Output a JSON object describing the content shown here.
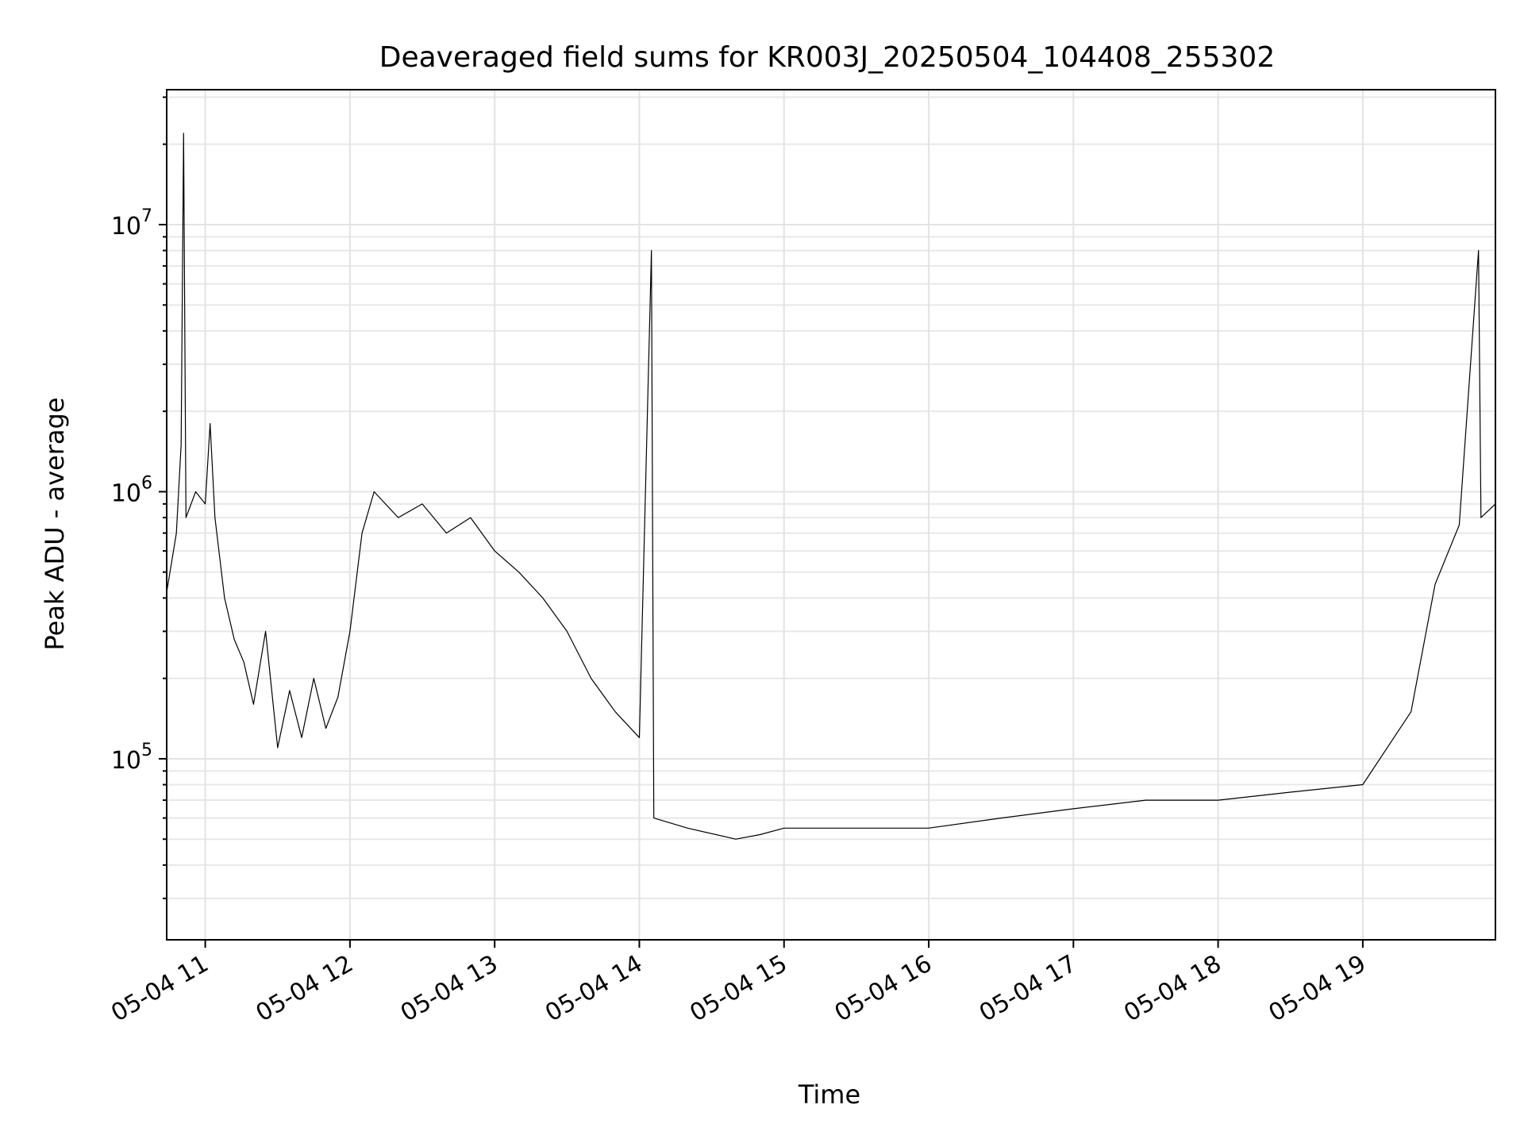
{
  "chart_data": {
    "type": "line",
    "title": "Deaveraged field sums for KR003J_20250504_104408_255302",
    "xlabel": "Time",
    "ylabel": "Peak ADU - average",
    "yscale": "log",
    "grid": true,
    "ylim": [
      21000,
      32000000
    ],
    "xlim": [
      "2025-05-04 10:44",
      "2025-05-04 19:55"
    ],
    "x_tick_labels": [
      "05-04 11",
      "05-04 12",
      "05-04 13",
      "05-04 14",
      "05-04 15",
      "05-04 16",
      "05-04 17",
      "05-04 18",
      "05-04 19"
    ],
    "x_tick_hours": [
      11,
      12,
      13,
      14,
      15,
      16,
      17,
      18,
      19
    ],
    "y_tick_labels": [
      {
        "base": "10",
        "exp": "5",
        "value": 100000
      },
      {
        "base": "10",
        "exp": "6",
        "value": 1000000
      },
      {
        "base": "10",
        "exp": "7",
        "value": 10000000
      }
    ],
    "series": [
      {
        "color": "#000000",
        "points": [
          [
            "2025-05-04 10:44",
            420000
          ],
          [
            "2025-05-04 10:48",
            700000
          ],
          [
            "2025-05-04 10:50",
            1500000
          ],
          [
            "2025-05-04 10:51",
            22000000
          ],
          [
            "2025-05-04 10:52",
            800000
          ],
          [
            "2025-05-04 10:56",
            1000000
          ],
          [
            "2025-05-04 11:00",
            900000
          ],
          [
            "2025-05-04 11:02",
            1800000
          ],
          [
            "2025-05-04 11:04",
            800000
          ],
          [
            "2025-05-04 11:08",
            400000
          ],
          [
            "2025-05-04 11:12",
            280000
          ],
          [
            "2025-05-04 11:16",
            230000
          ],
          [
            "2025-05-04 11:20",
            160000
          ],
          [
            "2025-05-04 11:25",
            300000
          ],
          [
            "2025-05-04 11:30",
            110000
          ],
          [
            "2025-05-04 11:35",
            180000
          ],
          [
            "2025-05-04 11:40",
            120000
          ],
          [
            "2025-05-04 11:45",
            200000
          ],
          [
            "2025-05-04 11:50",
            130000
          ],
          [
            "2025-05-04 11:55",
            170000
          ],
          [
            "2025-05-04 12:00",
            300000
          ],
          [
            "2025-05-04 12:05",
            700000
          ],
          [
            "2025-05-04 12:10",
            1000000
          ],
          [
            "2025-05-04 12:20",
            800000
          ],
          [
            "2025-05-04 12:30",
            900000
          ],
          [
            "2025-05-04 12:40",
            700000
          ],
          [
            "2025-05-04 12:50",
            800000
          ],
          [
            "2025-05-04 13:00",
            600000
          ],
          [
            "2025-05-04 13:10",
            500000
          ],
          [
            "2025-05-04 13:20",
            400000
          ],
          [
            "2025-05-04 13:30",
            300000
          ],
          [
            "2025-05-04 13:40",
            200000
          ],
          [
            "2025-05-04 13:50",
            150000
          ],
          [
            "2025-05-04 14:00",
            120000
          ],
          [
            "2025-05-04 14:05",
            8000000
          ],
          [
            "2025-05-04 14:06",
            60000
          ],
          [
            "2025-05-04 14:20",
            55000
          ],
          [
            "2025-05-04 14:40",
            50000
          ],
          [
            "2025-05-04 14:50",
            52000
          ],
          [
            "2025-05-04 15:00",
            55000
          ],
          [
            "2025-05-04 15:30",
            55000
          ],
          [
            "2025-05-04 16:00",
            55000
          ],
          [
            "2025-05-04 16:30",
            60000
          ],
          [
            "2025-05-04 17:00",
            65000
          ],
          [
            "2025-05-04 17:30",
            70000
          ],
          [
            "2025-05-04 18:00",
            70000
          ],
          [
            "2025-05-04 18:30",
            75000
          ],
          [
            "2025-05-04 19:00",
            80000
          ],
          [
            "2025-05-04 19:20",
            150000
          ],
          [
            "2025-05-04 19:30",
            450000
          ],
          [
            "2025-05-04 19:40",
            750000
          ],
          [
            "2025-05-04 19:48",
            8000000
          ],
          [
            "2025-05-04 19:49",
            800000
          ],
          [
            "2025-05-04 19:55",
            900000
          ]
        ]
      }
    ]
  }
}
